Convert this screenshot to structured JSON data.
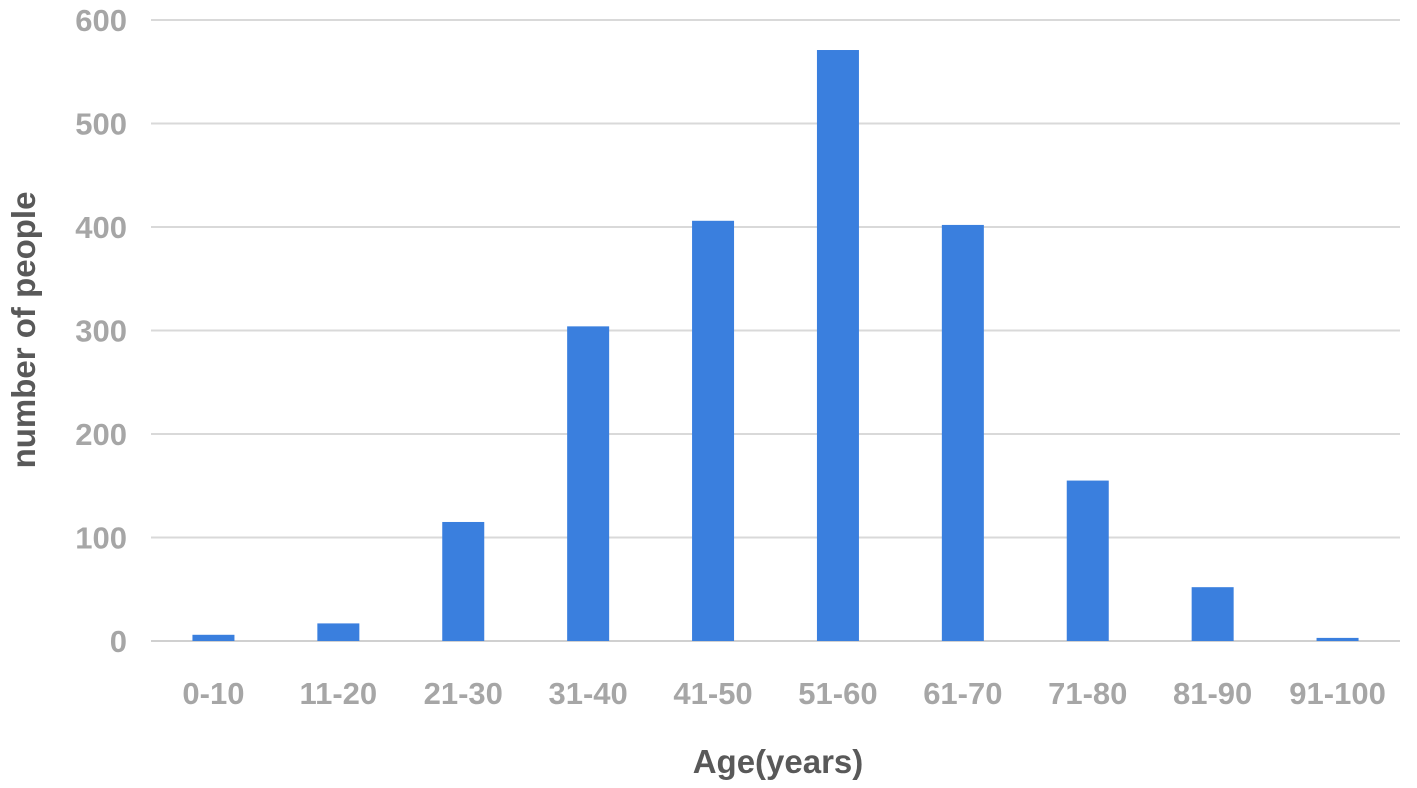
{
  "chart_data": {
    "type": "bar",
    "title": "",
    "xlabel": "Age(years)",
    "ylabel": "number of people",
    "categories": [
      "0-10",
      "11-20",
      "21-30",
      "31-40",
      "41-50",
      "51-60",
      "61-70",
      "71-80",
      "81-90",
      "91-100"
    ],
    "values": [
      6,
      17,
      115,
      304,
      406,
      571,
      402,
      155,
      52,
      3
    ],
    "ylim": [
      0,
      600
    ],
    "yticks": [
      0,
      100,
      200,
      300,
      400,
      500,
      600
    ],
    "grid": true,
    "legend": "none",
    "bar_color": "#3a7fde"
  }
}
